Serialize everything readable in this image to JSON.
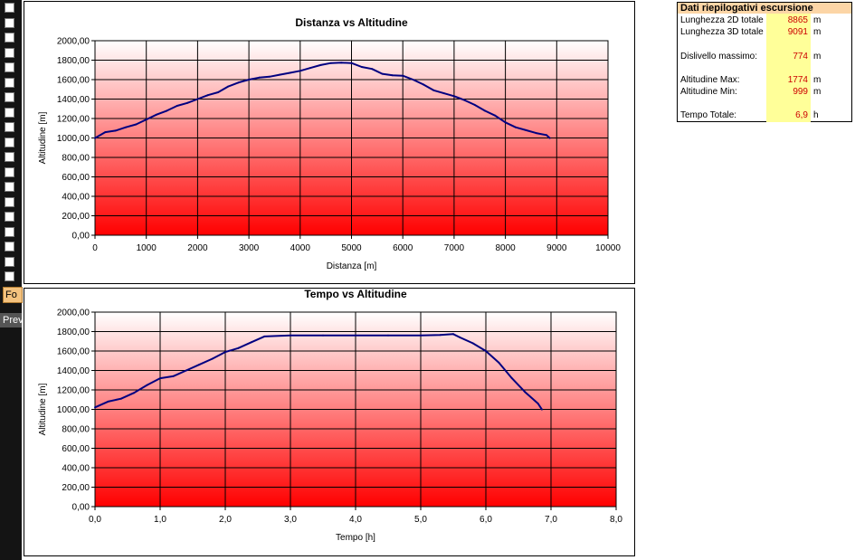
{
  "sidebar": {
    "tab_fo_label": "Fo",
    "tab_pre_label": "Prev"
  },
  "summary": {
    "title": "Dati riepilogativi escursione",
    "rows": [
      {
        "label": "Lunghezza 2D totale",
        "value": "8865",
        "unit": "m"
      },
      {
        "label": "Lunghezza 3D totale",
        "value": "9091",
        "unit": "m"
      },
      {
        "label": "Dislivello massimo:",
        "value": "774",
        "unit": "m"
      },
      {
        "label": "Altitudine Max:",
        "value": "1774",
        "unit": "m"
      },
      {
        "label": "Altitudine Min:",
        "value": "999",
        "unit": "m"
      },
      {
        "label": "Tempo Totale:",
        "value": "6,9",
        "unit": "h"
      }
    ]
  },
  "colors": {
    "line": "#000080",
    "gradient_top": "#ffffff",
    "gradient_bottom": "#ff0000",
    "value_text": "#cc0000",
    "summary_header": "#fcd5a6",
    "summary_values_bg": "#ffff99"
  },
  "chart_data": [
    {
      "type": "line",
      "title": "Distanza vs Altitudine",
      "xlabel": "Distanza [m]",
      "ylabel": "Altitudine [m]",
      "xlim": [
        0,
        10000
      ],
      "ylim": [
        0,
        2000
      ],
      "x_ticks": [
        "0",
        "1000",
        "2000",
        "3000",
        "4000",
        "5000",
        "6000",
        "7000",
        "8000",
        "9000",
        "10000"
      ],
      "y_ticks": [
        "0,00",
        "200,00",
        "400,00",
        "600,00",
        "800,00",
        "1000,00",
        "1200,00",
        "1400,00",
        "1600,00",
        "1800,00",
        "2000,00"
      ],
      "grid": true,
      "series": [
        {
          "x": [
            0,
            200,
            400,
            600,
            800,
            1000,
            1200,
            1400,
            1600,
            1800,
            2000,
            2200,
            2400,
            2600,
            2800,
            3000,
            3200,
            3400,
            3600,
            3800,
            4000,
            4200,
            4400,
            4600,
            4800,
            5000,
            5200,
            5400,
            5600,
            5800,
            6000,
            6200,
            6400,
            6600,
            6800,
            7000,
            7200,
            7400,
            7600,
            7800,
            8000,
            8200,
            8400,
            8600,
            8800,
            8865
          ],
          "y": [
            999,
            1060,
            1075,
            1110,
            1140,
            1190,
            1240,
            1280,
            1330,
            1360,
            1400,
            1440,
            1470,
            1530,
            1570,
            1600,
            1620,
            1630,
            1650,
            1670,
            1690,
            1720,
            1750,
            1770,
            1774,
            1770,
            1730,
            1710,
            1660,
            1645,
            1640,
            1600,
            1550,
            1490,
            1460,
            1430,
            1390,
            1340,
            1280,
            1230,
            1160,
            1110,
            1080,
            1050,
            1030,
            999
          ]
        }
      ]
    },
    {
      "type": "line",
      "title": "Tempo vs Altitudine",
      "xlabel": "Tempo [h]",
      "ylabel": "Altitudine [m]",
      "xlim": [
        0,
        8
      ],
      "ylim": [
        0,
        2000
      ],
      "x_ticks": [
        "0,0",
        "1,0",
        "2,0",
        "3,0",
        "4,0",
        "5,0",
        "6,0",
        "7,0",
        "8,0"
      ],
      "y_ticks": [
        "0,00",
        "200,00",
        "400,00",
        "600,00",
        "800,00",
        "1000,00",
        "1200,00",
        "1400,00",
        "1600,00",
        "1800,00",
        "2000,00"
      ],
      "grid": true,
      "series": [
        {
          "x": [
            0,
            0.2,
            0.4,
            0.6,
            0.8,
            1.0,
            1.2,
            1.4,
            1.6,
            1.8,
            2.0,
            2.2,
            2.4,
            2.6,
            3.0,
            3.5,
            4.0,
            4.5,
            5.0,
            5.3,
            5.5,
            5.6,
            5.8,
            6.0,
            6.2,
            6.4,
            6.6,
            6.8,
            6.86
          ],
          "y": [
            1020,
            1080,
            1110,
            1170,
            1250,
            1320,
            1340,
            1400,
            1460,
            1520,
            1590,
            1630,
            1690,
            1750,
            1760,
            1760,
            1760,
            1760,
            1760,
            1765,
            1774,
            1740,
            1680,
            1600,
            1480,
            1320,
            1180,
            1060,
            999
          ]
        }
      ]
    }
  ]
}
